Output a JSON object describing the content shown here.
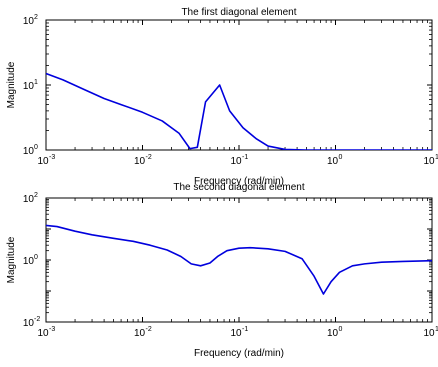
{
  "chart_data": [
    {
      "type": "line",
      "title": "The first diagonal element",
      "xlabel": "Frequency (rad/min)",
      "ylabel": "Magnitude",
      "xscale": "log",
      "yscale": "log",
      "xlim": [
        0.001,
        10
      ],
      "ylim": [
        1,
        100
      ],
      "grid": false,
      "line_color": "#0000dd",
      "x_tick_labels": [
        "10-3",
        "10-2",
        "10-1",
        "100",
        "101"
      ],
      "y_tick_labels": [
        "100",
        "101",
        "102"
      ],
      "series": [
        {
          "x": [
            0.001,
            0.0015,
            0.0025,
            0.004,
            0.006,
            0.01,
            0.016,
            0.024,
            0.031,
            0.037,
            0.045,
            0.063,
            0.08,
            0.11,
            0.15,
            0.2,
            0.3,
            0.5,
            1,
            2,
            5,
            10
          ],
          "y": [
            15,
            12,
            8.5,
            6.2,
            5.0,
            3.8,
            2.8,
            1.8,
            1.05,
            1.1,
            5.5,
            10,
            4.0,
            2.2,
            1.5,
            1.15,
            1.02,
            1.0,
            1.0,
            1.0,
            1.0,
            1.0
          ]
        }
      ]
    },
    {
      "type": "line",
      "title": "The second diagonal element",
      "xlabel": "Frequency (rad/min)",
      "ylabel": "Magnitude",
      "xscale": "log",
      "yscale": "log",
      "xlim": [
        0.001,
        10
      ],
      "ylim": [
        0.01,
        100
      ],
      "grid": false,
      "line_color": "#0000dd",
      "x_tick_labels": [
        "10-3",
        "10-2",
        "10-1",
        "100",
        "101"
      ],
      "y_tick_labels": [
        "10-2",
        "100",
        "102"
      ],
      "series": [
        {
          "x": [
            0.001,
            0.0013,
            0.002,
            0.003,
            0.005,
            0.008,
            0.012,
            0.018,
            0.025,
            0.032,
            0.04,
            0.05,
            0.06,
            0.075,
            0.1,
            0.13,
            0.2,
            0.3,
            0.45,
            0.6,
            0.75,
            0.9,
            1.1,
            1.5,
            2,
            3,
            5,
            10
          ],
          "y": [
            13,
            12,
            8.5,
            6.5,
            5.0,
            4.0,
            3.0,
            2.1,
            1.3,
            0.75,
            0.65,
            0.8,
            1.3,
            2.0,
            2.4,
            2.5,
            2.3,
            1.9,
            1.1,
            0.3,
            0.08,
            0.2,
            0.4,
            0.65,
            0.75,
            0.85,
            0.9,
            0.95
          ]
        }
      ]
    }
  ]
}
